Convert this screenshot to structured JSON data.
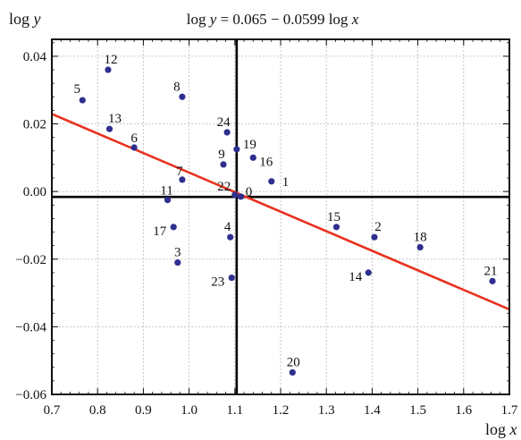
{
  "chart_data": {
    "type": "scatter",
    "title": "log y = 0.065 − 0.0599 log x",
    "title_parts": {
      "left": "log ",
      "var1": "y",
      "mid": " = 0.065 − 0.0599 log ",
      "var2": "x"
    },
    "xlabel": "log x",
    "xlabel_parts": {
      "pre": "log ",
      "var": "x"
    },
    "ylabel": "log y",
    "ylabel_parts": {
      "pre": "log ",
      "var": "y"
    },
    "xlim": [
      0.7,
      1.7
    ],
    "ylim": [
      -0.06,
      0.045
    ],
    "xticks": [
      0.7,
      0.8,
      0.9,
      1.0,
      1.1,
      1.2,
      1.3,
      1.4,
      1.5,
      1.6,
      1.7
    ],
    "xtick_labels": [
      "0.7",
      "0.8",
      "0.9",
      "1.0",
      "1.1",
      "1.2",
      "1.3",
      "1.4",
      "1.5",
      "1.6",
      "1.7"
    ],
    "yticks": [
      -0.06,
      -0.04,
      -0.02,
      0.0,
      0.02,
      0.04
    ],
    "ytick_labels": [
      "−0.06",
      "−0.04",
      "−0.02",
      "0.00",
      "0.02",
      "0.04"
    ],
    "grid": true,
    "reference_lines": {
      "x": 1.104,
      "y": -0.0016
    },
    "fit_line": {
      "intercept": 0.065,
      "slope": -0.0599,
      "color": "#e8311f"
    },
    "point_color": "#2e2f8f",
    "points": [
      {
        "label": "0",
        "x": 1.113,
        "y": -0.0015
      },
      {
        "label": "1",
        "x": 1.18,
        "y": 0.003
      },
      {
        "label": "2",
        "x": 1.405,
        "y": -0.0135
      },
      {
        "label": "3",
        "x": 0.975,
        "y": -0.021
      },
      {
        "label": "4",
        "x": 1.09,
        "y": -0.0135
      },
      {
        "label": "5",
        "x": 0.767,
        "y": 0.027
      },
      {
        "label": "6",
        "x": 0.88,
        "y": 0.013
      },
      {
        "label": "7",
        "x": 0.985,
        "y": 0.0035
      },
      {
        "label": "8",
        "x": 0.985,
        "y": 0.028
      },
      {
        "label": "9",
        "x": 1.075,
        "y": 0.008
      },
      {
        "label": "11",
        "x": 0.953,
        "y": -0.0025
      },
      {
        "label": "12",
        "x": 0.823,
        "y": 0.036
      },
      {
        "label": "13",
        "x": 0.826,
        "y": 0.0185
      },
      {
        "label": "14",
        "x": 1.392,
        "y": -0.024
      },
      {
        "label": "15",
        "x": 1.322,
        "y": -0.0105
      },
      {
        "label": "16",
        "x": 1.14,
        "y": 0.01
      },
      {
        "label": "17",
        "x": 0.966,
        "y": -0.0105
      },
      {
        "label": "18",
        "x": 1.505,
        "y": -0.0165
      },
      {
        "label": "19",
        "x": 1.104,
        "y": 0.0125
      },
      {
        "label": "20",
        "x": 1.226,
        "y": -0.0535
      },
      {
        "label": "21",
        "x": 1.663,
        "y": -0.0265
      },
      {
        "label": "22",
        "x": 1.1,
        "y": -0.001
      },
      {
        "label": "23",
        "x": 1.093,
        "y": -0.0255
      },
      {
        "label": "24",
        "x": 1.083,
        "y": 0.0175
      }
    ]
  }
}
